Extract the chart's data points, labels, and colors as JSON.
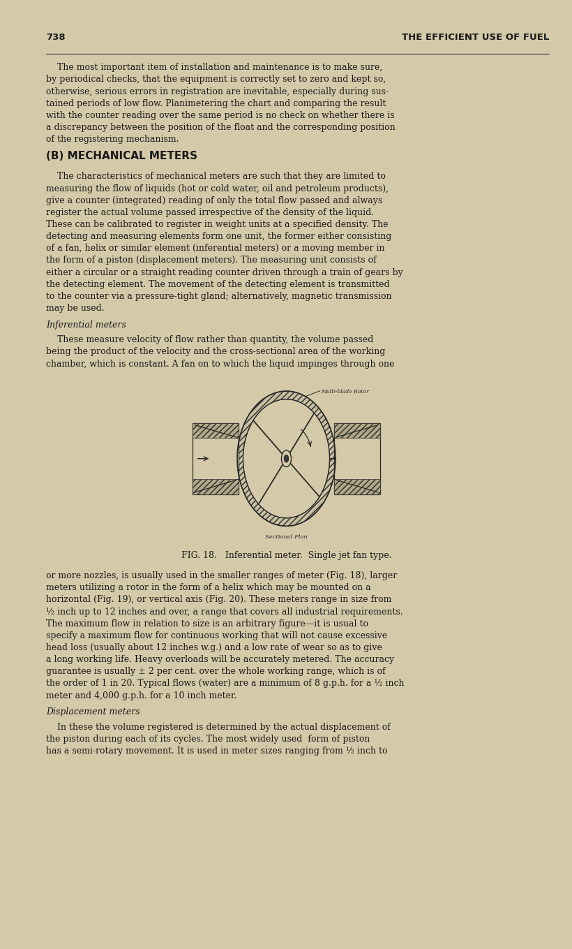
{
  "bg_color": "#d4c9a8",
  "text_color": "#1a1a1a",
  "page_number": "738",
  "header_title": "THE EFFICIENT USE OF FUEL",
  "para1": "The most important item of installation and maintenance is to make sure,\nby periodical checks, that the equipment is correctly set to zero and kept so,\notherwise, serious errors in registration are inevitable, especially during sus-\ntained periods of low flow. Planimetering the chart and comparing the result\nwith the counter reading over the same period is no check on whether there is\na discrepancy between the position of the float and the corresponding position\nof the registering mechanism.",
  "section_b": "(B) MECHANICAL METERS",
  "para2": "    The characteristics of mechanical meters are such that they are limited to\nmeasuring the flow of liquids (hot or cold water, oil and petroleum products),\ngive a counter (integrated) reading of only the total flow passed and always\nregister the actual volume passed irrespective of the density of the liquid.\nThese can be calibrated to register in weight units at a specified density. The\ndetecting and measuring elements form one unit, the former either consisting\nof a fan, helix or similar element (inferential meters) or a moving member in\nthe form of a piston (displacement meters). The measuring unit consists of\neither a circular or a straight reading counter driven through a train of gears by\nthe detecting element. The movement of the detecting element is transmitted\nto the counter via a pressure-tight gland; alternatively, magnetic transmission\nmay be used.",
  "subsection1": "Inferential meters",
  "para3": "    These measure velocity of flow rather than quantity, the volume passed\nbeing the product of the velocity and the cross-sectional area of the working\nchamber, which is constant. A fan on to which the liquid impinges through one",
  "fig_caption": "FIG. 18.   Inferential meter.  Single jet fan type.",
  "fig_label_rotor": "Multi-blade Rotor",
  "fig_label_section": "Sectional Plan",
  "para4": "or more nozzles, is usually used in the smaller ranges of meter (Fig. 18), larger\nmeters utilizing a rotor in the form of a helix which may be mounted on a\nhorizontal (Fig. 19), or vertical axis (Fig. 20). These meters range in size from\n½ inch up to 12 inches and over, a range that covers all industrial requirements.\nThe maximum flow in relation to size is an arbitrary figure—it is usual to\nspecify a maximum flow for continuous working that will not cause excessive\nhead loss (usually about 12 inches w.g.) and a low rate of wear so as to give\na long working life. Heavy overloads will be accurately metered. The accuracy\nguarantee is usually ± 2 per cent. over the whole working range, which is of\nthe order of 1 in 20. Typical flows (water) are a minimum of 8 g.p.h. for a ½ inch\nmeter and 4,000 g.p.h. for a 10 inch meter.",
  "subsection2": "Displacement meters",
  "para5": "    In these the volume registered is determined by the actual displacement of\nthe piston during each of its cycles. The most widely used  form of piston\nhas a semi-rotary movement. It is used in meter sizes ranging from ½ inch to"
}
